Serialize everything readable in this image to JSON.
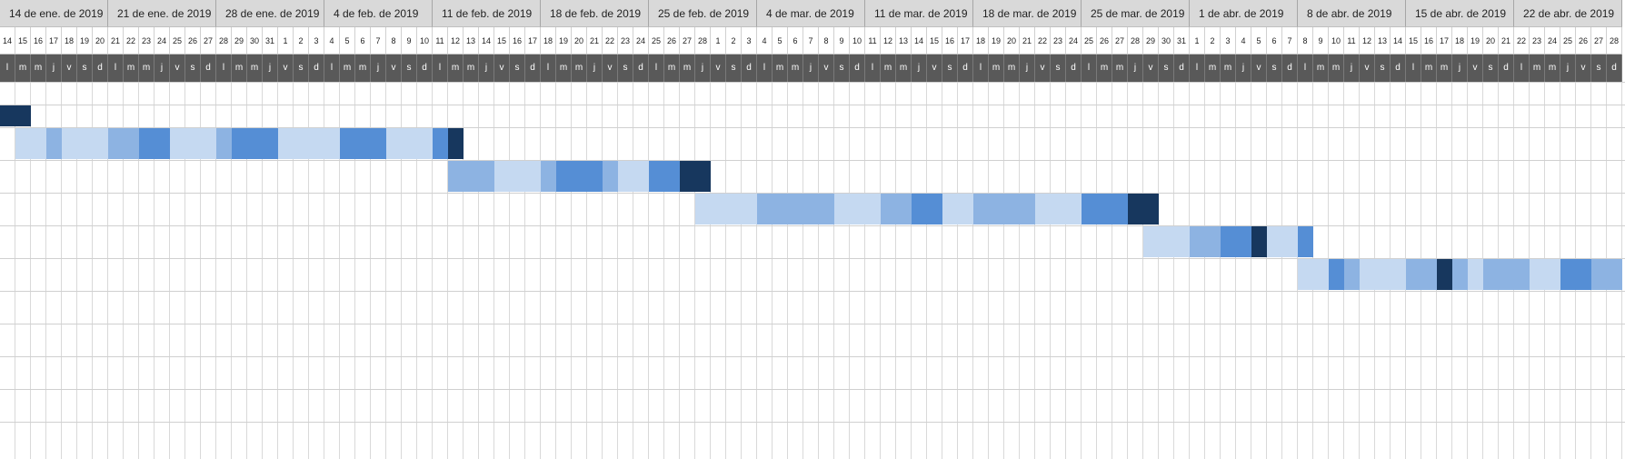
{
  "start_day_offset": 0,
  "weeks": [
    "14 de ene. de 2019",
    "21 de ene. de 2019",
    "28 de ene. de 2019",
    "4 de feb. de 2019",
    "11 de feb. de 2019",
    "18 de feb. de 2019",
    "25 de feb. de 2019",
    "4 de mar. de 2019",
    "11 de mar. de 2019",
    "18 de mar. de 2019",
    "25 de mar. de 2019",
    "1 de abr. de 2019",
    "8 de abr. de 2019",
    "15 de abr. de 2019",
    "22 de abr. de 2019"
  ],
  "days": [
    "14",
    "15",
    "16",
    "17",
    "18",
    "19",
    "20",
    "21",
    "22",
    "23",
    "24",
    "25",
    "26",
    "27",
    "28",
    "29",
    "30",
    "31",
    "1",
    "2",
    "3",
    "4",
    "5",
    "6",
    "7",
    "8",
    "9",
    "10",
    "11",
    "12",
    "13",
    "14",
    "15",
    "16",
    "17",
    "18",
    "19",
    "20",
    "21",
    "22",
    "23",
    "24",
    "25",
    "26",
    "27",
    "28",
    "1",
    "2",
    "3",
    "4",
    "5",
    "6",
    "7",
    "8",
    "9",
    "10",
    "11",
    "12",
    "13",
    "14",
    "15",
    "16",
    "17",
    "18",
    "19",
    "20",
    "21",
    "22",
    "23",
    "24",
    "25",
    "26",
    "27",
    "28",
    "29",
    "30",
    "31",
    "1",
    "2",
    "3",
    "4",
    "5",
    "6",
    "7",
    "8",
    "9",
    "10",
    "11",
    "12",
    "13",
    "14",
    "15",
    "16",
    "17",
    "18",
    "19",
    "20",
    "21",
    "22",
    "23",
    "24",
    "25",
    "26",
    "27",
    "28"
  ],
  "weekday_letters": [
    "l",
    "m",
    "m",
    "j",
    "v",
    "s",
    "d"
  ],
  "colors": {
    "light": "#c5d9f1",
    "mid": "#8db3e2",
    "strong": "#558ed5",
    "dark": "#17375e"
  },
  "task_rows": [
    [
      {
        "day": 0,
        "len": 2,
        "shade": "dark"
      }
    ],
    [
      {
        "day": 1,
        "len": 2,
        "shade": "light"
      },
      {
        "day": 3,
        "len": 1,
        "shade": "mid"
      },
      {
        "day": 4,
        "len": 3,
        "shade": "light"
      },
      {
        "day": 7,
        "len": 2,
        "shade": "mid"
      },
      {
        "day": 9,
        "len": 2,
        "shade": "strong"
      },
      {
        "day": 11,
        "len": 3,
        "shade": "light"
      },
      {
        "day": 14,
        "len": 1,
        "shade": "mid"
      },
      {
        "day": 15,
        "len": 3,
        "shade": "strong"
      },
      {
        "day": 18,
        "len": 4,
        "shade": "light"
      },
      {
        "day": 22,
        "len": 3,
        "shade": "strong"
      },
      {
        "day": 25,
        "len": 3,
        "shade": "light"
      },
      {
        "day": 28,
        "len": 1,
        "shade": "strong"
      },
      {
        "day": 29,
        "len": 1,
        "shade": "dark"
      }
    ],
    [
      {
        "day": 29,
        "len": 3,
        "shade": "mid"
      },
      {
        "day": 32,
        "len": 3,
        "shade": "light"
      },
      {
        "day": 35,
        "len": 1,
        "shade": "mid"
      },
      {
        "day": 36,
        "len": 3,
        "shade": "strong"
      },
      {
        "day": 39,
        "len": 1,
        "shade": "mid"
      },
      {
        "day": 40,
        "len": 2,
        "shade": "light"
      },
      {
        "day": 42,
        "len": 2,
        "shade": "strong"
      },
      {
        "day": 44,
        "len": 2,
        "shade": "dark"
      }
    ],
    [
      {
        "day": 45,
        "len": 4,
        "shade": "light"
      },
      {
        "day": 49,
        "len": 5,
        "shade": "mid"
      },
      {
        "day": 54,
        "len": 3,
        "shade": "light"
      },
      {
        "day": 57,
        "len": 2,
        "shade": "mid"
      },
      {
        "day": 59,
        "len": 2,
        "shade": "strong"
      },
      {
        "day": 61,
        "len": 2,
        "shade": "light"
      },
      {
        "day": 63,
        "len": 4,
        "shade": "mid"
      },
      {
        "day": 67,
        "len": 3,
        "shade": "light"
      },
      {
        "day": 70,
        "len": 3,
        "shade": "strong"
      },
      {
        "day": 73,
        "len": 2,
        "shade": "dark"
      }
    ],
    [
      {
        "day": 74,
        "len": 3,
        "shade": "light"
      },
      {
        "day": 77,
        "len": 2,
        "shade": "mid"
      },
      {
        "day": 79,
        "len": 2,
        "shade": "strong"
      },
      {
        "day": 81,
        "len": 1,
        "shade": "dark"
      },
      {
        "day": 82,
        "len": 2,
        "shade": "light"
      },
      {
        "day": 84,
        "len": 1,
        "shade": "strong"
      }
    ],
    [
      {
        "day": 84,
        "len": 2,
        "shade": "light"
      },
      {
        "day": 86,
        "len": 1,
        "shade": "strong"
      },
      {
        "day": 87,
        "len": 1,
        "shade": "mid"
      },
      {
        "day": 88,
        "len": 3,
        "shade": "light"
      },
      {
        "day": 91,
        "len": 2,
        "shade": "mid"
      },
      {
        "day": 93,
        "len": 1,
        "shade": "dark"
      },
      {
        "day": 94,
        "len": 1,
        "shade": "mid"
      },
      {
        "day": 95,
        "len": 1,
        "shade": "light"
      },
      {
        "day": 96,
        "len": 3,
        "shade": "mid"
      },
      {
        "day": 99,
        "len": 2,
        "shade": "light"
      },
      {
        "day": 101,
        "len": 2,
        "shade": "strong"
      },
      {
        "day": 103,
        "len": 2,
        "shade": "mid"
      }
    ],
    [],
    [],
    [],
    [],
    []
  ]
}
